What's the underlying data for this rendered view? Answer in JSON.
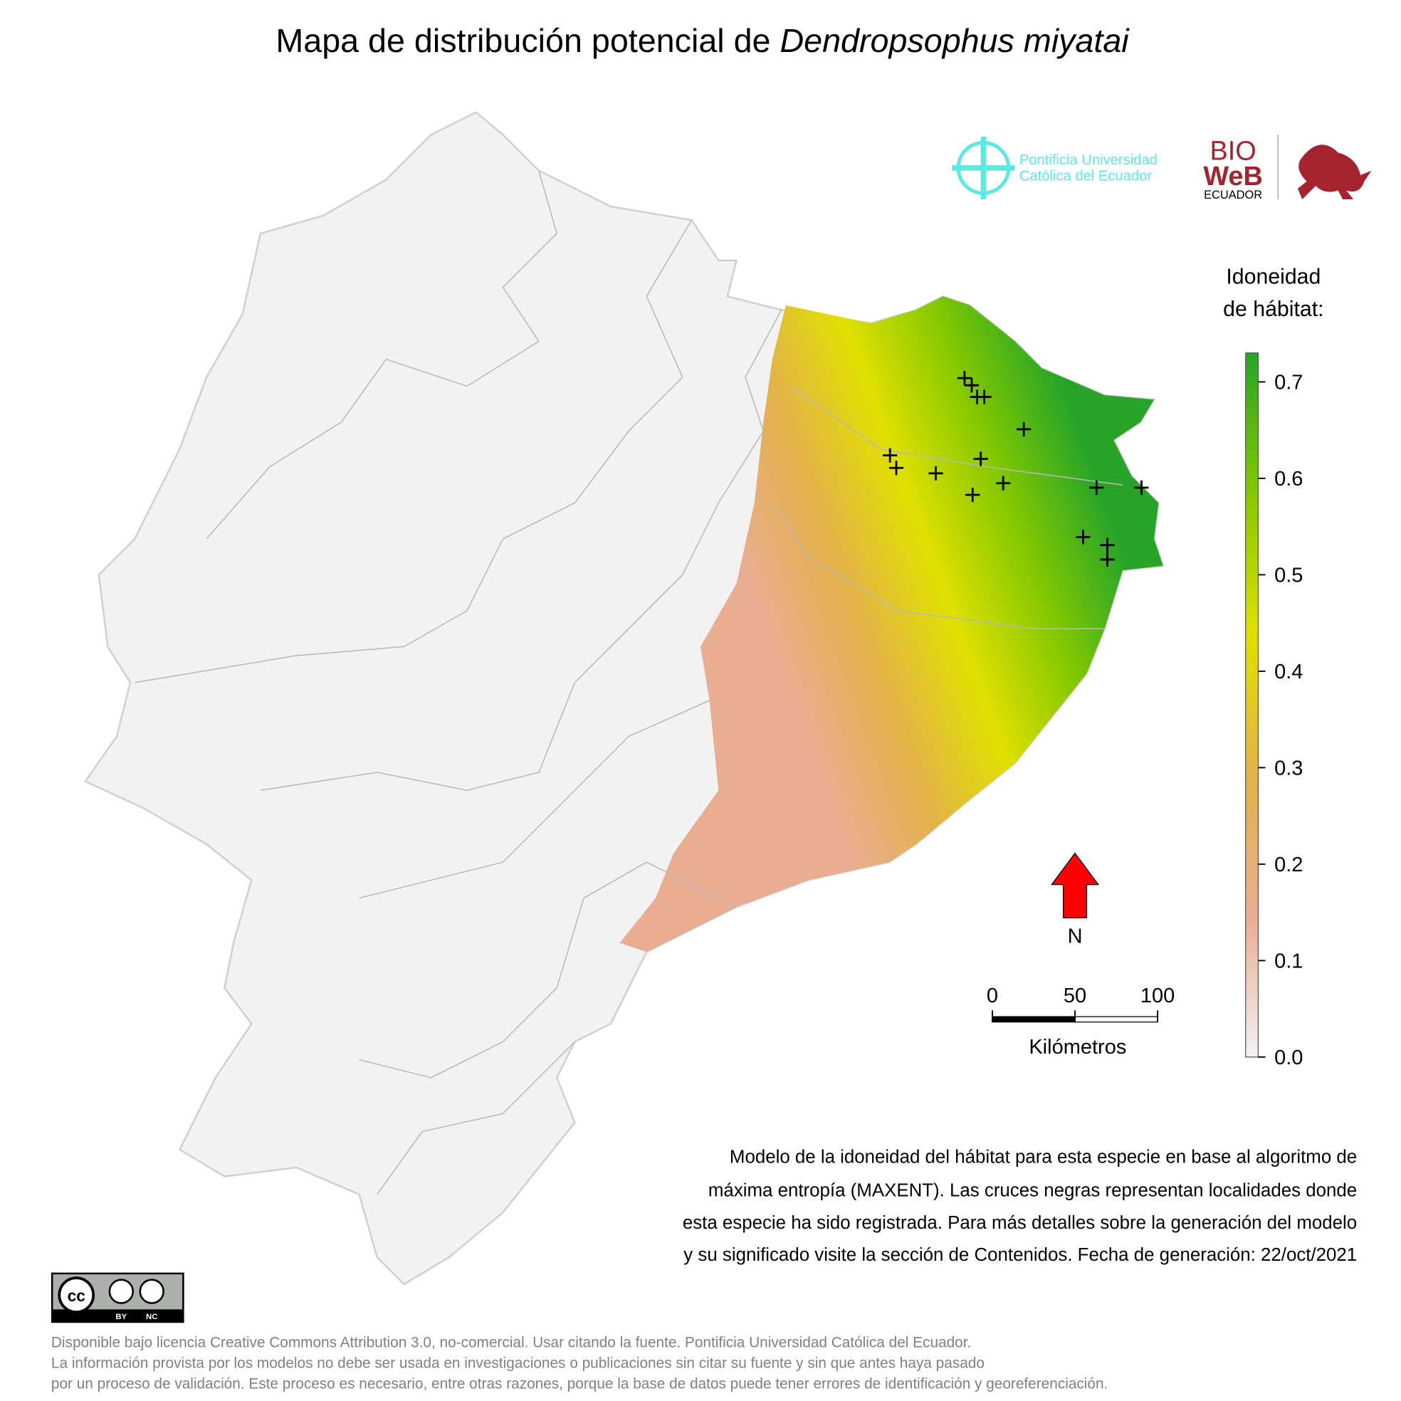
{
  "title": {
    "text": "Mapa de distribución potencial de ",
    "species": "Dendropsophus miyatai"
  },
  "logos": {
    "puce": [
      "Pontificia Universidad",
      "Católica del Ecuador"
    ],
    "bioweb": [
      "BIO",
      "WeB",
      "ECUADOR"
    ]
  },
  "legend": {
    "title": [
      "Idoneidad",
      "de hábitat:"
    ],
    "lim": [
      0,
      0.73
    ],
    "ticks": [
      {
        "value": 0,
        "label": "0.0"
      },
      0.1,
      0.2,
      0.3,
      0.4,
      0.5,
      0.6,
      0.7
    ],
    "colors": [
      "#f2f2f2",
      "#e9ad92",
      "#e3b24a",
      "#e0e000",
      "#84c800",
      "#28a528"
    ]
  },
  "north": "N",
  "scale": {
    "lim": [
      0,
      100
    ],
    "ticks": [
      0,
      50,
      100
    ],
    "unit": "Kilómetros"
  },
  "description": [
    "Modelo de la idoneidad del hábitat para esta especie en base al algoritmo de",
    "máxima entropía (MAXENT). Las cruces negras representan localidades donde",
    "esta especie ha sido registrada. Para más detalles sobre la generación del modelo",
    "y su significado visite la sección de Contenidos. Fecha de generación: 22/oct/2021"
  ],
  "license": {
    "badge": [
      "BY",
      "NC"
    ],
    "lines": [
      "Disponible bajo licencia Creative Commons Attribution 3.0, no-comercial. Usar citando la fuente. Pontificia Universidad Católica del Ecuador.",
      "La información provista por los modelos no debe ser usada en investigaciones o publicaciones sin citar su fuente y sin que antes haya pasado",
      "por un proceso de validación. Este proceso es necesario, entre otras razones, porque la base de datos puede tener errores de identificación y georeferenciación."
    ]
  }
}
